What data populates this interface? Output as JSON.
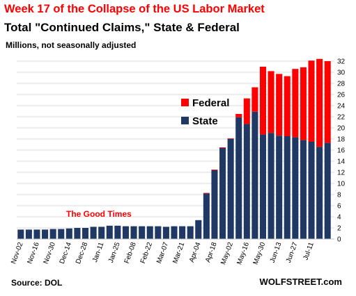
{
  "chart_data": {
    "type": "bar",
    "stacked": true,
    "title": "Week 17 of the Collapse of the US Labor Market",
    "subtitle": "Total \"Continued Claims,\" State & Federal",
    "units": "Millions, not seasonally adjusted",
    "annotation": "The Good Times",
    "source": "Source: DOL",
    "brand": "WOLFSTREET.com",
    "ylim": [
      0,
      32
    ],
    "yticks": [
      0,
      2,
      4,
      6,
      8,
      10,
      12,
      14,
      16,
      18,
      20,
      22,
      24,
      26,
      28,
      30,
      32
    ],
    "y_axis_side": "right",
    "grid": true,
    "legend_position": "center",
    "colors": {
      "Federal": "#ff0000",
      "State": "#1f3864"
    },
    "x_tick_labels": [
      "Nov-02",
      "Nov-16",
      "Nov-30",
      "Dec-14",
      "Dec-28",
      "Jan-11",
      "Jan-25",
      "Feb-08",
      "Feb-22",
      "Mar-07",
      "Mar-21",
      "Apr-04",
      "Apr-18",
      "May-02",
      "May-16",
      "May-30",
      "Jun-13",
      "Jun-27",
      "Jul-11"
    ],
    "x_tick_every": 2,
    "series": [
      {
        "name": "State",
        "values": [
          1.7,
          1.7,
          1.7,
          1.7,
          1.8,
          1.8,
          1.9,
          2.0,
          2.0,
          2.2,
          2.2,
          2.4,
          2.4,
          2.3,
          2.3,
          2.3,
          2.3,
          2.3,
          2.2,
          2.3,
          2.3,
          2.3,
          3.4,
          8.2,
          12.4,
          16.4,
          18.0,
          21.9,
          20.7,
          22.9,
          18.8,
          19.1,
          18.6,
          18.5,
          18.3,
          17.8,
          17.5,
          16.6,
          17.3
        ]
      },
      {
        "name": "Federal",
        "values": [
          0,
          0,
          0,
          0,
          0,
          0,
          0,
          0,
          0,
          0,
          0,
          0,
          0,
          0,
          0,
          0,
          0,
          0,
          0,
          0,
          0,
          0,
          0,
          0.1,
          0.1,
          0.1,
          0.1,
          0.6,
          4.6,
          4.4,
          12.2,
          11.1,
          11.1,
          10.8,
          12.3,
          13.1,
          14.6,
          15.8,
          14.7
        ]
      }
    ]
  }
}
